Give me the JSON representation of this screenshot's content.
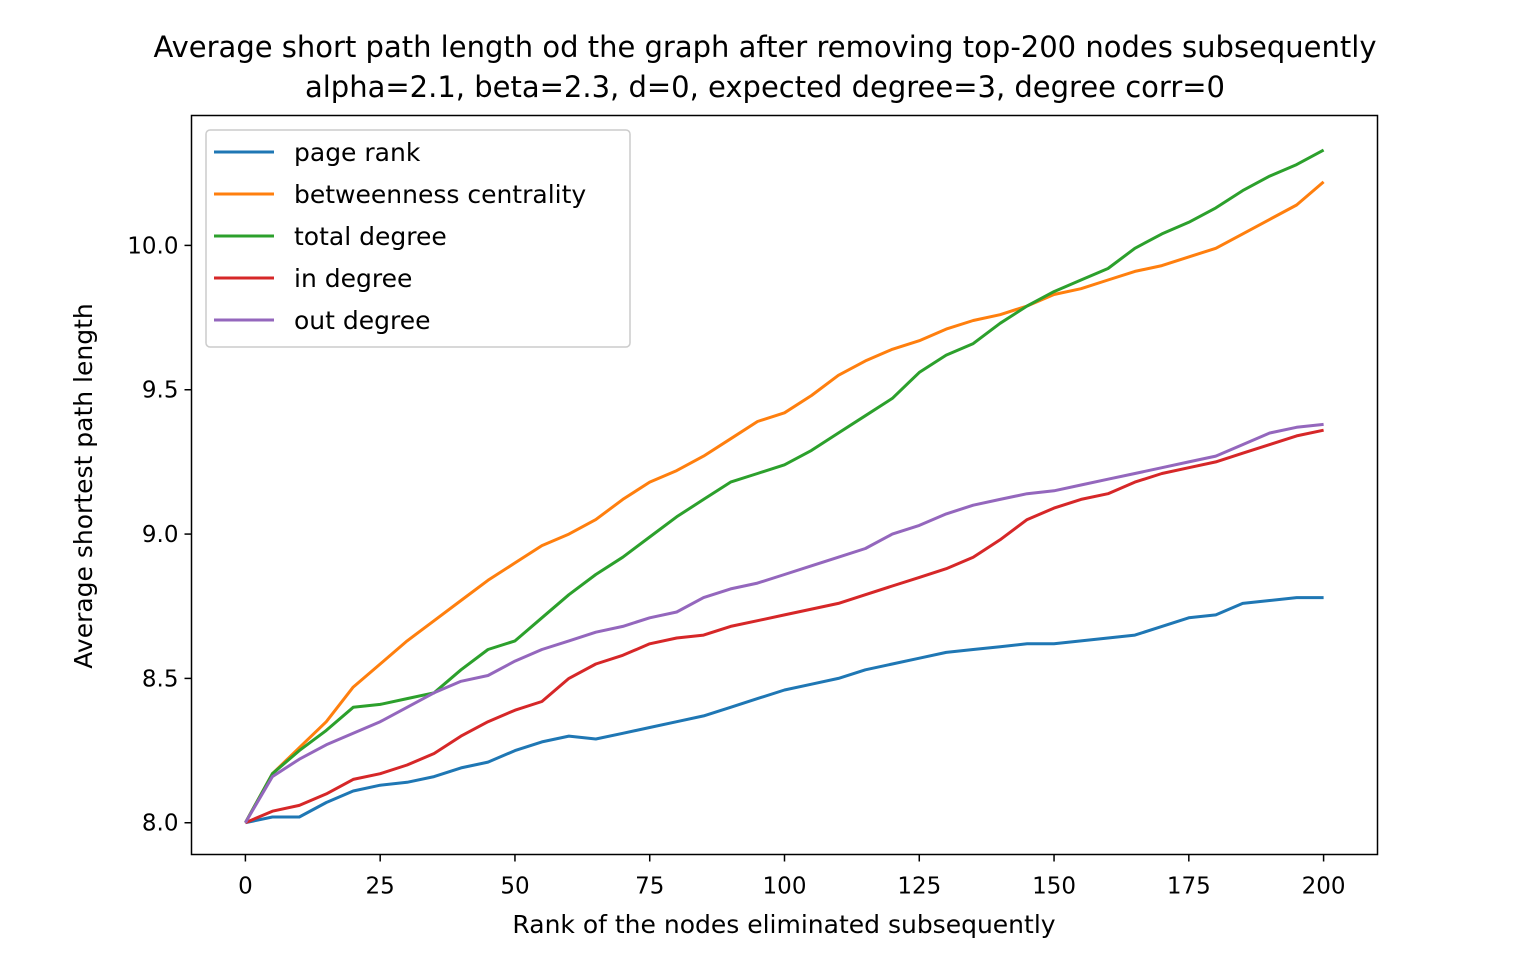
{
  "chart_data": {
    "type": "line",
    "title": "Average short path length od the graph after removing top-200 nodes subsequently",
    "subtitle": "alpha=2.1, beta=2.3, d=0, expected degree=3, degree corr=0",
    "xlabel": "Rank of the nodes eliminated subsequently",
    "ylabel": "Average shortest path length",
    "xlim": [
      -10,
      210
    ],
    "ylim": [
      7.89,
      10.45
    ],
    "xticks": [
      0,
      25,
      50,
      75,
      100,
      125,
      150,
      175,
      200
    ],
    "xtick_labels": [
      "0",
      "25",
      "50",
      "75",
      "100",
      "125",
      "150",
      "175",
      "200"
    ],
    "yticks": [
      8.0,
      8.5,
      9.0,
      9.5,
      10.0
    ],
    "ytick_labels": [
      "8.0",
      "8.5",
      "9.0",
      "9.5",
      "10.0"
    ],
    "grid": false,
    "legend_position": "upper-left",
    "x": [
      0,
      5,
      10,
      15,
      20,
      25,
      30,
      35,
      40,
      45,
      50,
      55,
      60,
      65,
      70,
      75,
      80,
      85,
      90,
      95,
      100,
      105,
      110,
      115,
      120,
      125,
      130,
      135,
      140,
      145,
      150,
      155,
      160,
      165,
      170,
      175,
      180,
      185,
      190,
      195,
      200
    ],
    "series": [
      {
        "name": "page rank",
        "color": "#1f77b4",
        "values": [
          8.0,
          8.02,
          8.02,
          8.07,
          8.11,
          8.13,
          8.14,
          8.16,
          8.19,
          8.21,
          8.25,
          8.28,
          8.3,
          8.29,
          8.31,
          8.33,
          8.35,
          8.37,
          8.4,
          8.43,
          8.46,
          8.48,
          8.5,
          8.53,
          8.55,
          8.57,
          8.59,
          8.6,
          8.61,
          8.62,
          8.62,
          8.63,
          8.64,
          8.65,
          8.68,
          8.71,
          8.72,
          8.76,
          8.77,
          8.78,
          8.78
        ]
      },
      {
        "name": "betweenness centrality",
        "color": "#ff7f0e",
        "values": [
          8.0,
          8.17,
          8.26,
          8.35,
          8.47,
          8.55,
          8.63,
          8.7,
          8.77,
          8.84,
          8.9,
          8.96,
          9.0,
          9.05,
          9.12,
          9.18,
          9.22,
          9.27,
          9.33,
          9.39,
          9.42,
          9.48,
          9.55,
          9.6,
          9.64,
          9.67,
          9.71,
          9.74,
          9.76,
          9.79,
          9.83,
          9.85,
          9.88,
          9.91,
          9.93,
          9.96,
          9.99,
          10.04,
          10.09,
          10.14,
          10.22
        ]
      },
      {
        "name": "total degree",
        "color": "#2ca02c",
        "values": [
          8.0,
          8.17,
          8.25,
          8.32,
          8.4,
          8.41,
          8.43,
          8.45,
          8.53,
          8.6,
          8.63,
          8.71,
          8.79,
          8.86,
          8.92,
          8.99,
          9.06,
          9.12,
          9.18,
          9.21,
          9.24,
          9.29,
          9.35,
          9.41,
          9.47,
          9.56,
          9.62,
          9.66,
          9.73,
          9.79,
          9.84,
          9.88,
          9.92,
          9.99,
          10.04,
          10.08,
          10.13,
          10.19,
          10.24,
          10.28,
          10.33
        ]
      },
      {
        "name": "in degree",
        "color": "#d62728",
        "values": [
          8.0,
          8.04,
          8.06,
          8.1,
          8.15,
          8.17,
          8.2,
          8.24,
          8.3,
          8.35,
          8.39,
          8.42,
          8.5,
          8.55,
          8.58,
          8.62,
          8.64,
          8.65,
          8.68,
          8.7,
          8.72,
          8.74,
          8.76,
          8.79,
          8.82,
          8.85,
          8.88,
          8.92,
          8.98,
          9.05,
          9.09,
          9.12,
          9.14,
          9.18,
          9.21,
          9.23,
          9.25,
          9.28,
          9.31,
          9.34,
          9.36
        ]
      },
      {
        "name": "out degree",
        "color": "#9467bd",
        "values": [
          8.0,
          8.16,
          8.22,
          8.27,
          8.31,
          8.35,
          8.4,
          8.45,
          8.49,
          8.51,
          8.56,
          8.6,
          8.63,
          8.66,
          8.68,
          8.71,
          8.73,
          8.78,
          8.81,
          8.83,
          8.86,
          8.89,
          8.92,
          8.95,
          9.0,
          9.03,
          9.07,
          9.1,
          9.12,
          9.14,
          9.15,
          9.17,
          9.19,
          9.21,
          9.23,
          9.25,
          9.27,
          9.31,
          9.35,
          9.37,
          9.38
        ]
      }
    ]
  }
}
